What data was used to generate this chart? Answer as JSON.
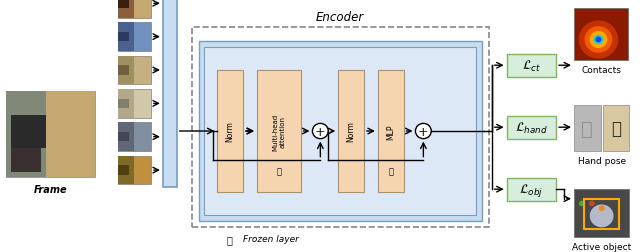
{
  "title": "Encoder",
  "frozen_label": "Frozen layer",
  "frame_label": "Frame",
  "contacts_label": "Contacts",
  "hand_pose_label": "Hand pose",
  "active_object_label": "Active object",
  "norm_label": "Norm",
  "mha_label": "Multi-head\nattention",
  "mlp_label": "MLP",
  "encoder_bg": "#dce8f5",
  "block_color": "#f5d5b0",
  "loss_box_color": "#d8eedc",
  "loss_box_edge": "#82b366",
  "tall_block_edge": "#7a9abf",
  "tall_block_color": "#c8ddf0",
  "inner_box_edge": "#7a9abf",
  "inner_box_color": "#c8ddf0",
  "background": "#ffffff",
  "dashed_edge": "#888888"
}
